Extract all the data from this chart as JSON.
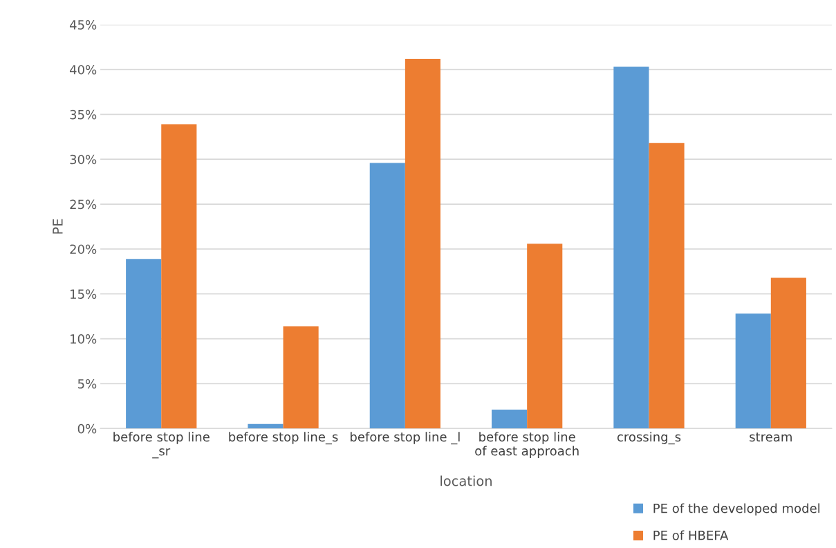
{
  "chart_data": {
    "type": "bar",
    "xlabel": "location",
    "ylabel": "PE",
    "categories": [
      "before stop line\n_sr",
      "before stop line_s",
      "before stop line _l",
      "before stop line\nof east approach",
      "crossing_s",
      "stream"
    ],
    "series": [
      {
        "name": "PE of the developed model",
        "color": "#5b9bd5",
        "values": [
          18.9,
          0.5,
          29.6,
          2.1,
          40.3,
          12.8
        ]
      },
      {
        "name": "PE of HBEFA",
        "color": "#ed7d31",
        "values": [
          33.9,
          11.4,
          41.2,
          20.6,
          31.8,
          16.8
        ]
      }
    ],
    "ylim": [
      0,
      45
    ],
    "yticks": [
      {
        "value": 0,
        "label": "0%"
      },
      {
        "value": 5,
        "label": "5%"
      },
      {
        "value": 10,
        "label": "10%"
      },
      {
        "value": 15,
        "label": "15%"
      },
      {
        "value": 20,
        "label": "20%"
      },
      {
        "value": 25,
        "label": "25%"
      },
      {
        "value": 30,
        "label": "30%"
      },
      {
        "value": 35,
        "label": "35%"
      },
      {
        "value": 40,
        "label": "40%"
      },
      {
        "value": 45,
        "label": "45%"
      }
    ],
    "grid": "y",
    "legend": "bottom right"
  }
}
